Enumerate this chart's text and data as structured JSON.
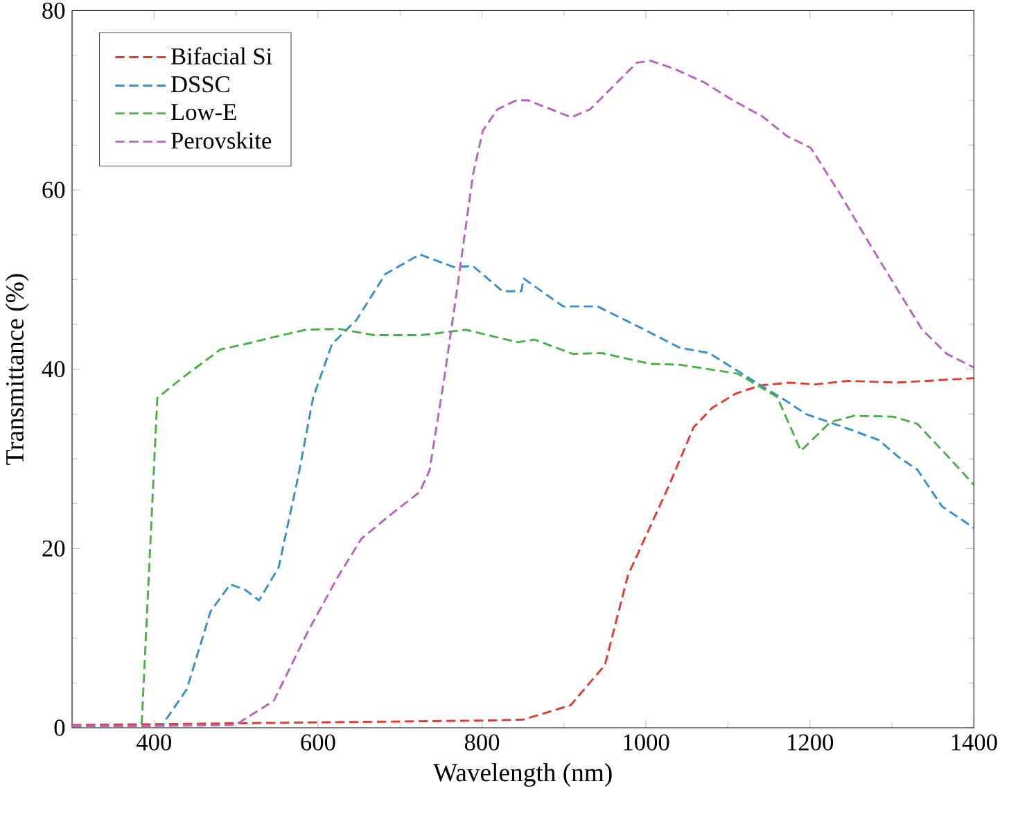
{
  "chart_data": {
    "type": "line",
    "xlabel": "Wavelength (nm)",
    "ylabel": "Transmittance (%)",
    "xlim": [
      300,
      1400
    ],
    "ylim": [
      0,
      80
    ],
    "xticks": [
      400,
      600,
      800,
      1000,
      1200,
      1400
    ],
    "yticks": [
      0,
      20,
      40,
      60,
      80
    ],
    "grid": false,
    "legend": "top left",
    "marker": "none",
    "line_style": "dashed",
    "series": [
      {
        "name": "Bifacial Si",
        "color": "#e03c31",
        "x": [
          300,
          400,
          600,
          800,
          850,
          908,
          950,
          978,
          1028,
          1058,
          1081,
          1110,
          1140,
          1176,
          1206,
          1247,
          1306,
          1400
        ],
        "values": [
          0.3,
          0.4,
          0.6,
          0.8,
          0.9,
          2.5,
          7,
          17,
          27,
          33.5,
          35.7,
          37.3,
          38.2,
          38.5,
          38.3,
          38.7,
          38.5,
          39
        ]
      },
      {
        "name": "DSSC",
        "color": "#3a8fc8",
        "x": [
          300,
          400,
          410,
          440,
          469,
          493,
          511,
          528,
          552,
          576,
          594,
          617,
          647,
          682,
          724,
          765,
          789,
          825,
          848,
          851,
          899,
          941,
          994,
          1041,
          1077,
          1124,
          1172,
          1195,
          1242,
          1284,
          1308,
          1331,
          1361,
          1400
        ],
        "values": [
          0.2,
          0.2,
          0.3,
          4.3,
          13,
          16,
          15.4,
          14.2,
          17.9,
          28.1,
          36.8,
          42.8,
          45.5,
          50.6,
          52.8,
          51.4,
          51.5,
          48.7,
          48.7,
          50.1,
          47,
          47,
          44.6,
          42.4,
          41.8,
          39.1,
          36.4,
          35,
          33.5,
          32.1,
          30.2,
          28.8,
          24.7,
          22.3
        ]
      },
      {
        "name": "Low-E",
        "color": "#4daf4a",
        "x": [
          300,
          380,
          385,
          404,
          434,
          481,
          511,
          547,
          585,
          626,
          668,
          726,
          780,
          844,
          864,
          911,
          946,
          1005,
          1041,
          1112,
          1160,
          1189,
          1225,
          1254,
          1302,
          1331,
          1373,
          1400
        ],
        "values": [
          0.2,
          0.2,
          0.5,
          36.8,
          39,
          42.2,
          42.8,
          43.6,
          44.4,
          44.5,
          43.8,
          43.8,
          44.4,
          43,
          43.3,
          41.7,
          41.8,
          40.6,
          40.5,
          39.5,
          36.9,
          30.9,
          34.1,
          34.8,
          34.7,
          33.9,
          29.8,
          27.1
        ]
      },
      {
        "name": "Perovskite",
        "color": "#b565c0",
        "x": [
          300,
          400,
          499,
          546,
          588,
          624,
          653,
          689,
          724,
          736,
          754,
          771,
          789,
          801,
          819,
          842,
          856,
          909,
          932,
          989,
          1006,
          1035,
          1071,
          1106,
          1142,
          1172,
          1201,
          1237,
          1272,
          1308,
          1337,
          1367,
          1400
        ],
        "values": [
          0.2,
          0.2,
          0.3,
          3,
          10.8,
          16.8,
          21.1,
          23.8,
          26.3,
          28.7,
          39,
          49.8,
          61.7,
          66.6,
          69,
          70,
          70,
          68.1,
          69,
          74.2,
          74.4,
          73.5,
          72,
          70,
          68.2,
          66,
          64.7,
          59.5,
          54.1,
          48.7,
          44.4,
          41.7,
          40.2
        ]
      }
    ]
  }
}
